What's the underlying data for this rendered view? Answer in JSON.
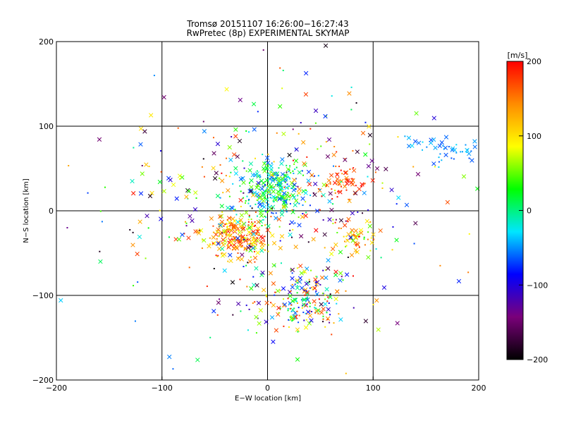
{
  "chart_data": {
    "type": "scatter",
    "title": "Tromsø 20151107 16:26:00−16:27:43",
    "subtitle": "RwPretec (8p) EXPERIMENTAL SKYMAP",
    "xlabel": "E−W location [km]",
    "ylabel": "N−S location [km]",
    "xlim": [
      -200,
      200
    ],
    "ylim": [
      -200,
      200
    ],
    "xticks": [
      "−200",
      "−100",
      "0",
      "100",
      "200"
    ],
    "yticks": [
      "−200",
      "−100",
      "0",
      "100",
      "200"
    ],
    "grid": true,
    "markers": [
      "x",
      "dot"
    ],
    "colorbar": {
      "label": "[m/s]",
      "range": [
        -200,
        200
      ],
      "ticks": [
        "200",
        "100",
        "0",
        "−100",
        "−200"
      ],
      "colormap": "black-purple-blue-cyan-green-yellow-orange-red",
      "stops": [
        "#000000",
        "#7a007a",
        "#0000ff",
        "#00e6ff",
        "#00ff00",
        "#ffff00",
        "#ff8c00",
        "#ff0000"
      ]
    },
    "clusters": [
      {
        "region": "center-north",
        "x": 5,
        "y": 25,
        "spread": [
          18,
          18
        ],
        "count": 260,
        "velocity_range": [
          -80,
          60
        ]
      },
      {
        "region": "center-west",
        "x": -28,
        "y": -30,
        "spread": [
          16,
          12
        ],
        "count": 220,
        "velocity_range": [
          60,
          200
        ]
      },
      {
        "region": "south",
        "x": 35,
        "y": -105,
        "spread": [
          18,
          20
        ],
        "count": 180,
        "velocity_range": [
          -120,
          200
        ]
      },
      {
        "region": "east-north",
        "x": 70,
        "y": 32,
        "spread": [
          12,
          12
        ],
        "count": 60,
        "velocity_range": [
          140,
          200
        ]
      },
      {
        "region": "east-south",
        "x": 82,
        "y": -32,
        "spread": [
          12,
          10
        ],
        "count": 60,
        "velocity_range": [
          20,
          200
        ]
      },
      {
        "region": "far-east-north",
        "x": 170,
        "y": 72,
        "spread": [
          18,
          8
        ],
        "count": 45,
        "velocity_range": [
          -70,
          -30
        ]
      },
      {
        "region": "scattered",
        "x": 0,
        "y": 0,
        "spread": [
          95,
          95
        ],
        "count": 400,
        "velocity_range": [
          -200,
          200
        ]
      }
    ]
  }
}
